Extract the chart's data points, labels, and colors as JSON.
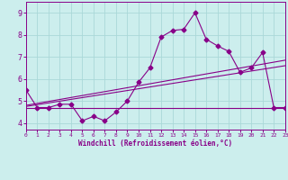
{
  "x": [
    0,
    1,
    2,
    3,
    4,
    5,
    6,
    7,
    8,
    9,
    10,
    11,
    12,
    13,
    14,
    15,
    16,
    17,
    18,
    19,
    20,
    21,
    22,
    23
  ],
  "y_main": [
    5.5,
    4.7,
    4.7,
    4.85,
    4.85,
    4.1,
    4.3,
    4.1,
    4.5,
    5.0,
    5.85,
    6.5,
    7.9,
    8.2,
    8.25,
    9.0,
    7.8,
    7.5,
    7.25,
    6.3,
    6.5,
    7.2,
    4.7,
    4.7
  ],
  "trend1_x": [
    0,
    23
  ],
  "trend1_y": [
    4.8,
    6.85
  ],
  "trend2_x": [
    0,
    23
  ],
  "trend2_y": [
    4.75,
    6.6
  ],
  "trend3_x": [
    0,
    23
  ],
  "trend3_y": [
    4.7,
    4.7
  ],
  "bg_color": "#cceeed",
  "line_color": "#880088",
  "grid_color": "#aad8d8",
  "xlabel": "Windchill (Refroidissement éolien,°C)",
  "ylabel_ticks": [
    4,
    5,
    6,
    7,
    8,
    9
  ],
  "xlim": [
    0,
    23
  ],
  "ylim": [
    3.7,
    9.5
  ],
  "xticks": [
    0,
    1,
    2,
    3,
    4,
    5,
    6,
    7,
    8,
    9,
    10,
    11,
    12,
    13,
    14,
    15,
    16,
    17,
    18,
    19,
    20,
    21,
    22,
    23
  ]
}
